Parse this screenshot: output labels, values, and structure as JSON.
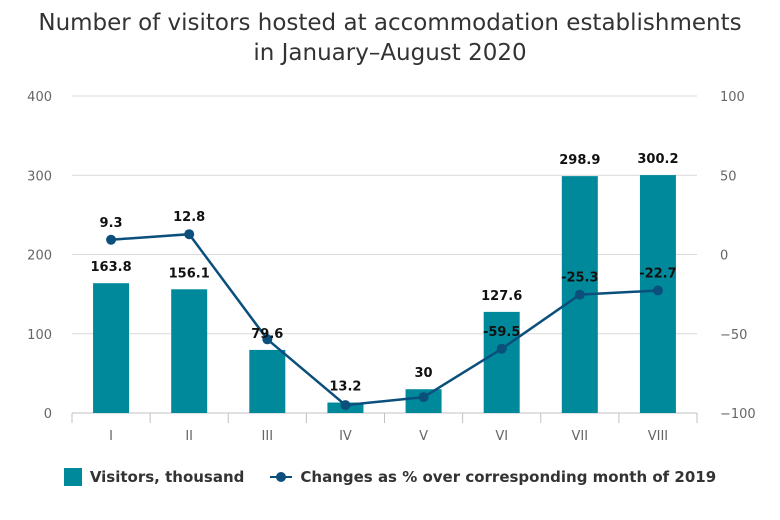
{
  "chart_data": {
    "type": "bar",
    "title_line1": "Number of visitors hosted at accommodation establishments",
    "title_line2": "in January–August 2020",
    "categories": [
      "I",
      "II",
      "III",
      "IV",
      "V",
      "VI",
      "VII",
      "VIII"
    ],
    "series": [
      {
        "name": "Visitors, thousand",
        "type": "bar",
        "axis": "left",
        "color": "#00899b",
        "values": [
          163.8,
          156.1,
          79.6,
          13.2,
          30,
          127.6,
          298.9,
          300.2
        ],
        "labels": [
          "163.8",
          "156.1",
          "79.6",
          "13.2",
          "30",
          "127.6",
          "298.9",
          "300.2"
        ]
      },
      {
        "name": "Changes as % over corresponding month of 2019",
        "type": "line",
        "axis": "right",
        "color": "#0b4f7d",
        "values": [
          9.3,
          12.8,
          -53.5,
          -95,
          -90,
          -59.5,
          -25.3,
          -22.7
        ],
        "labels": [
          "9.3",
          "12.8",
          "",
          "",
          "",
          "-59.5",
          "-25.3",
          "-22.7"
        ]
      }
    ],
    "y_left": {
      "lim": [
        0,
        400
      ],
      "ticks": [
        0,
        100,
        200,
        300,
        400
      ]
    },
    "y_right": {
      "lim": [
        -100,
        100
      ],
      "ticks": [
        -100,
        -50,
        0,
        50,
        100
      ],
      "tick_labels": [
        "−100",
        "−50",
        "0",
        "50",
        "100"
      ]
    },
    "grid": true,
    "legend_position": "bottom"
  }
}
